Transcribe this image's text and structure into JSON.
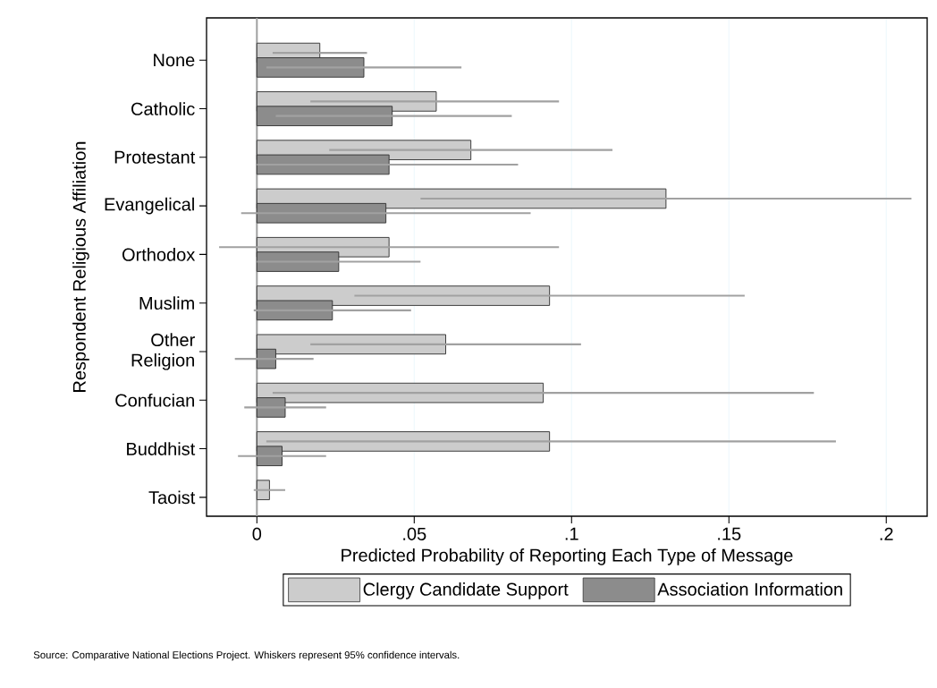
{
  "chart_data": {
    "type": "bar",
    "orientation": "horizontal",
    "categories": [
      "None",
      "Catholic",
      "Protestant",
      "Evangelical",
      "Orthodox",
      "Muslim",
      "Other Religion",
      "Confucian",
      "Buddhist",
      "Taoist"
    ],
    "series": [
      {
        "name": "Clergy Candidate Support",
        "color": "#cccccc",
        "values": [
          0.02,
          0.057,
          0.068,
          0.13,
          0.042,
          0.093,
          0.06,
          0.091,
          0.093,
          0.004
        ],
        "errors": [
          [
            0.005,
            0.035
          ],
          [
            0.017,
            0.096
          ],
          [
            0.023,
            0.113
          ],
          [
            0.052,
            0.208
          ],
          [
            -0.012,
            0.096
          ],
          [
            0.031,
            0.155
          ],
          [
            0.017,
            0.103
          ],
          [
            0.005,
            0.177
          ],
          [
            0.003,
            0.184
          ],
          [
            -0.001,
            0.009
          ]
        ]
      },
      {
        "name": "Association Information",
        "color": "#8c8c8c",
        "values": [
          0.034,
          0.043,
          0.042,
          0.041,
          0.026,
          0.024,
          0.006,
          0.009,
          0.008,
          null
        ],
        "errors": [
          [
            0.003,
            0.065
          ],
          [
            0.006,
            0.081
          ],
          [
            0.0,
            0.083
          ],
          [
            -0.005,
            0.087
          ],
          [
            0.0,
            0.052
          ],
          [
            -0.001,
            0.049
          ],
          [
            -0.007,
            0.018
          ],
          [
            -0.004,
            0.022
          ],
          [
            -0.006,
            0.022
          ],
          null
        ]
      }
    ],
    "xlim": [
      -0.016,
      0.213
    ],
    "xticks": [
      0,
      {
        "value": 0.05,
        "label": ".05"
      },
      {
        "value": 0.1,
        "label": ".1"
      },
      {
        "value": 0.15,
        "label": ".15"
      },
      {
        "value": 0.2,
        "label": ".2"
      }
    ],
    "xlabel": "Predicted Probability of Reporting Each Type of Message",
    "ylabel": "Respondent Religious Affiliation",
    "grid": "x",
    "legend": "bottom",
    "ref_lines": [
      {
        "axis": "x",
        "value": 0,
        "color": "#a0a0a0"
      }
    ],
    "annotations": [
      "Source: Comparative National Elections Project. Whiskers represent 95% confidence intervals."
    ]
  }
}
